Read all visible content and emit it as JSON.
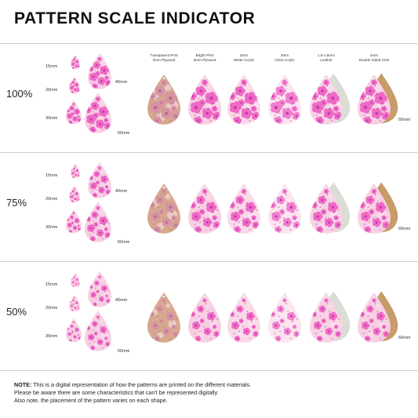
{
  "title": "PATTERN SCALE INDICATOR",
  "scales": [
    "100%",
    "75%",
    "50%"
  ],
  "sizes": [
    "15mm",
    "20mm",
    "30mm",
    "40mm",
    "50mm",
    "60mm"
  ],
  "columns": [
    {
      "line1": "Transparent Print",
      "line2": "3mm Plywood"
    },
    {
      "line1": "Bright Print",
      "line2": "3mm Plywood"
    },
    {
      "line1": "3mm",
      "line2": "White Acrylic"
    },
    {
      "line1": "3mm",
      "line2": "Clear Acrylic"
    },
    {
      "line1": "1.6-1.8mm",
      "line2": "Leather"
    },
    {
      "line1": "2mm",
      "line2": "Double Sided Cork"
    }
  ],
  "note": {
    "label": "NOTE:",
    "line1": " This is a digital representation of how the patterns are printed on the different materials.",
    "line2": "Please be aware there are some characteristics that can't be represented digitally.",
    "line3": "Also note, the placement of the pattern varies on each shape."
  },
  "colors": {
    "pink_bg": "#f7cfe2",
    "flower": "#ef69c6",
    "flower_dark": "#c73ba8",
    "flower_light": "#fbe2ef",
    "wood": "#d6a88e",
    "wood_flower": "#d792a4",
    "leather_back": "#dcdcd6",
    "cork_back": "#c79b6a",
    "rule": "#cfcfcf"
  }
}
